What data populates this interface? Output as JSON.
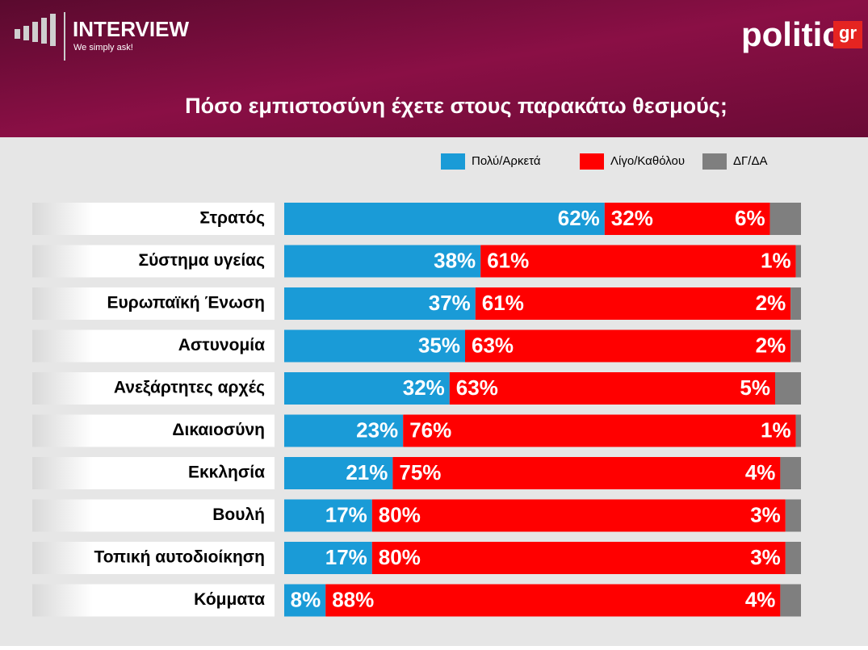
{
  "header": {
    "brand": "INTERVIEW",
    "tagline": "We simply ask!",
    "logo": "politic",
    "logo_suffix": "gr"
  },
  "chart_data": {
    "type": "stacked-barh",
    "title": "Πόσο εμπιστοσύνη έχετε στους παρακάτω θεσμούς;",
    "categories": [
      "Στρατός",
      "Σύστημα υγείας",
      "Ευρωπαϊκή Ένωση",
      "Αστυνομία",
      "Ανεξάρτητες αρχές",
      "Δικαιοσύνη",
      "Εκκλησία",
      "Βουλή",
      "Τοπική αυτοδιοίκηση",
      "Κόμματα"
    ],
    "xlim": [
      0,
      100
    ],
    "series": [
      {
        "name": "Πολύ/Αρκετά",
        "color": "#1a9bd7",
        "values": [
          62,
          38,
          37,
          35,
          32,
          23,
          21,
          17,
          17,
          8
        ],
        "value_labels": [
          "62%",
          "38%",
          "37%",
          "35%",
          "32%",
          "23%",
          "21%",
          "17%",
          "17%",
          "8%"
        ]
      },
      {
        "name": "Λίγο/Καθόλου",
        "color": "#ff0000",
        "values": [
          32,
          61,
          61,
          63,
          63,
          76,
          75,
          80,
          80,
          88
        ],
        "value_labels": [
          "32%",
          "61%",
          "61%",
          "63%",
          "63%",
          "76%",
          "75%",
          "80%",
          "80%",
          "88%"
        ]
      },
      {
        "name": "ΔΓ/ΔΑ",
        "color": "#7f7f7f",
        "values": [
          6,
          1,
          2,
          2,
          5,
          1,
          4,
          3,
          3,
          4
        ],
        "value_labels": [
          "6%",
          "1%",
          "2%",
          "2%",
          "5%",
          "1%",
          "4%",
          "3%",
          "3%",
          "4%"
        ]
      }
    ]
  }
}
